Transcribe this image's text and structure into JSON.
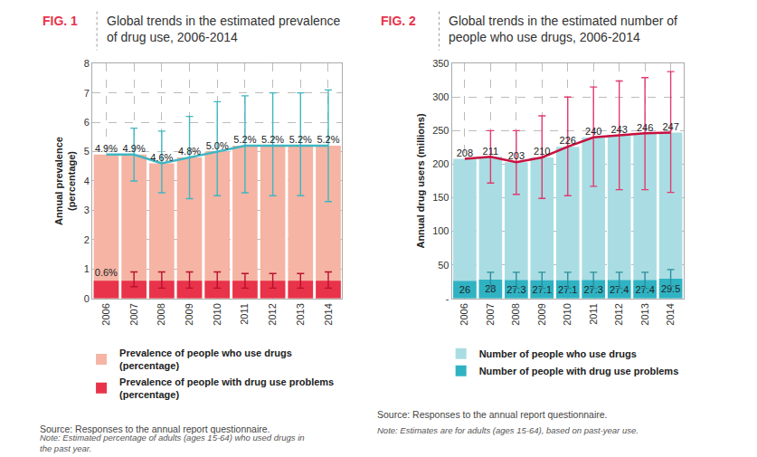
{
  "chart_data": [
    {
      "type": "bar",
      "fig_label": "FIG. 1",
      "title": "Global trends in the estimated prevalence\nof drug use, 2006-2014",
      "y_label": "Annual prevalence\n(percentage)",
      "categories": [
        "2006",
        "2007",
        "2008",
        "2009",
        "2010",
        "2011",
        "2012",
        "2013",
        "2014"
      ],
      "stacked": false,
      "grid": true,
      "legend": "bottom-left",
      "data_labels": true,
      "ylim": [
        0,
        8
      ],
      "yticks": [
        0,
        1,
        2,
        3,
        4,
        5,
        6,
        7,
        8
      ],
      "series": [
        {
          "name": "Prevalence of people who use drugs\n(percentage)",
          "color": "#f5b4a4",
          "line_style": "solid",
          "values": [
            4.9,
            4.9,
            4.6,
            4.8,
            5.0,
            5.2,
            5.2,
            5.2,
            5.2
          ],
          "value_labels": [
            "4.9%",
            "4.9%",
            "4.6%",
            "4.8%",
            "5.0%",
            "5.2%",
            "5.2%",
            "5.2%",
            "5.2%"
          ],
          "error_low": [
            null,
            4.0,
            3.6,
            3.4,
            3.5,
            3.6,
            3.5,
            3.5,
            3.3
          ],
          "error_high": [
            null,
            5.8,
            5.7,
            6.2,
            6.7,
            6.9,
            7.0,
            7.0,
            7.1
          ]
        },
        {
          "name": "Prevalence of people with drug use problems\n(percentage)",
          "color": "#e8334a",
          "values": [
            0.6,
            0.6,
            0.6,
            0.6,
            0.6,
            0.6,
            0.6,
            0.6,
            0.6
          ],
          "value_labels": [
            "0.6%",
            null,
            null,
            null,
            null,
            null,
            null,
            null,
            null
          ],
          "error_low": [
            null,
            0.4,
            0.35,
            0.35,
            0.35,
            0.35,
            0.35,
            0.35,
            0.35
          ],
          "error_high": [
            null,
            0.9,
            0.9,
            0.9,
            0.9,
            0.85,
            0.85,
            0.85,
            0.9
          ]
        }
      ],
      "source": "Source: Responses to the annual report questionnaire.",
      "note": "Note: Estimated percentage of adults (ages 15-64) who used drugs in\nthe past year."
    },
    {
      "type": "bar",
      "fig_label": "FIG. 2",
      "title": "Global trends in the estimated number of\npeople who use drugs, 2006-2014",
      "y_label": "Annual drug users (millions)",
      "categories": [
        "2006",
        "2007",
        "2008",
        "2009",
        "2010",
        "2011",
        "2012",
        "2013",
        "2014"
      ],
      "stacked": false,
      "grid": true,
      "legend": "bottom-left",
      "data_labels": true,
      "ylim": [
        0,
        350
      ],
      "yticks": [
        {
          "value": 0,
          "label": "-"
        },
        50,
        100,
        150,
        200,
        250,
        300,
        350
      ],
      "series": [
        {
          "name": "Number of people who use drugs",
          "color": "#a9dde3",
          "line_style": "solid",
          "values": [
            208,
            211,
            203,
            210,
            226,
            240,
            243,
            246,
            247
          ],
          "error_low": [
            null,
            172,
            155,
            149,
            153,
            167,
            162,
            162,
            158
          ],
          "error_high": [
            null,
            250,
            250,
            272,
            300,
            315,
            324,
            329,
            338
          ]
        },
        {
          "name": "Number of people with drug use problems",
          "color": "#2fb3c3",
          "values": [
            26,
            28,
            27.3,
            27.1,
            27.1,
            27.3,
            27.4,
            27.4,
            29.5
          ],
          "error_low": [
            null,
            16,
            15,
            15,
            15,
            15,
            15,
            15,
            18
          ],
          "error_high": [
            null,
            39,
            39,
            39,
            39,
            39,
            39,
            39,
            43
          ]
        }
      ],
      "source": "Source: Responses to the annual report questionnaire.",
      "note": "Note: Estimates are for adults (ages 15-64), based on past-year use."
    }
  ]
}
